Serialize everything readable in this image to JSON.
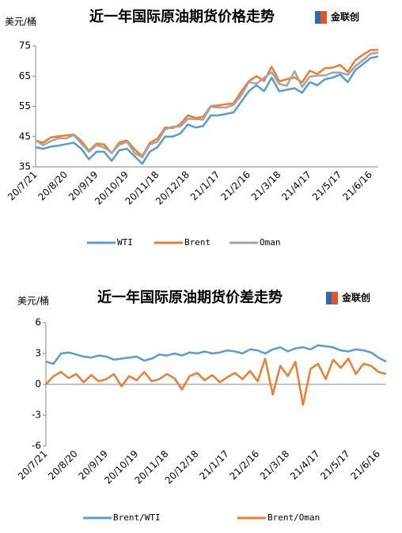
{
  "chart_data": [
    {
      "type": "line",
      "title": "近一年国际原油期货价格走势",
      "y_label": "美元/桶",
      "logo": "金联创",
      "categories": [
        "20/7/21",
        null,
        null,
        null,
        "20/8/20",
        null,
        null,
        null,
        "20/9/19",
        null,
        null,
        null,
        "20/10/19",
        null,
        null,
        null,
        "20/11/18",
        null,
        null,
        null,
        "20/12/18",
        null,
        null,
        null,
        "21/1/17",
        null,
        null,
        null,
        "21/2/16",
        null,
        null,
        null,
        "21/3/18",
        null,
        null,
        null,
        "21/4/17",
        null,
        null,
        null,
        "21/5/17",
        null,
        null,
        null,
        "21/6/16",
        null
      ],
      "series": [
        {
          "name": "WTI",
          "color": "#5b9bd5",
          "values": [
            41.5,
            41,
            41.7,
            42,
            42.5,
            43,
            41,
            37.5,
            40,
            40,
            37,
            40.5,
            41,
            38.5,
            36,
            40,
            41.5,
            45,
            45,
            46,
            49,
            48,
            48.5,
            52,
            52,
            52.5,
            53,
            56.5,
            60,
            62,
            60,
            64.5,
            60,
            60.5,
            61,
            59.5,
            63,
            62,
            64,
            64.5,
            65.5,
            63,
            67,
            69,
            71,
            71.5
          ]
        },
        {
          "name": "Brent",
          "color": "#ed7d31",
          "values": [
            43.7,
            43.0,
            44.7,
            45.1,
            45.4,
            45.7,
            43.6,
            40.3,
            42.7,
            42.4,
            39.5,
            43.1,
            43.7,
            40.8,
            38.5,
            42.9,
            44.3,
            48.0,
            47.8,
            49.1,
            52.0,
            51.2,
            51.5,
            55.1,
            55.3,
            55.7,
            56.0,
            59.9,
            63.3,
            65.0,
            63.4,
            68.1,
            63.2,
            64.0,
            64.6,
            62.9,
            66.8,
            65.7,
            67.6,
            67.8,
            68.7,
            66.4,
            70.3,
            72.1,
            73.6,
            73.7
          ]
        },
        {
          "name": "Oman",
          "color": "#a5a5a5",
          "values": [
            43.7,
            42.2,
            43.5,
            44.5,
            44.4,
            45.5,
            42.7,
            40.0,
            42.2,
            41.4,
            39.7,
            42.3,
            43.3,
            39.6,
            38.2,
            42.4,
            43.3,
            47.4,
            48.3,
            48.3,
            50.9,
            50.8,
            50.6,
            54.9,
            54.6,
            54.6,
            55.5,
            58.6,
            63.0,
            62.5,
            64.4,
            66.3,
            62.4,
            61.8,
            66.6,
            61.4,
            64.8,
            65.2,
            65.2,
            66.2,
            66.2,
            65.4,
            68.3,
            70.3,
            72.4,
            72.7
          ]
        }
      ],
      "ylim": [
        35,
        75
      ],
      "yticks": [
        35,
        45,
        55,
        65,
        75
      ],
      "grid": false,
      "legend": "bottom"
    },
    {
      "type": "line",
      "title": "近一年国际原油期货价差走势",
      "y_label": "美元/桶",
      "logo": "金联创",
      "categories": [
        "20/7/21",
        null,
        null,
        null,
        "20/8/20",
        null,
        null,
        null,
        "20/9/19",
        null,
        null,
        null,
        "20/10/19",
        null,
        null,
        null,
        "20/11/18",
        null,
        null,
        null,
        "20/12/18",
        null,
        null,
        null,
        "21/1/17",
        null,
        null,
        null,
        "21/2/16",
        null,
        null,
        null,
        "21/3/18",
        null,
        null,
        null,
        "21/4/17",
        null,
        null,
        null,
        "21/5/17",
        null,
        null,
        null,
        "21/6/16",
        null
      ],
      "series": [
        {
          "name": "Brent/WTI",
          "color": "#5b9bd5",
          "values": [
            2.2,
            2.0,
            3.0,
            3.1,
            2.9,
            2.7,
            2.6,
            2.8,
            2.7,
            2.4,
            2.5,
            2.6,
            2.7,
            2.3,
            2.5,
            2.9,
            2.8,
            3.0,
            2.8,
            3.1,
            3.0,
            3.2,
            3.0,
            3.1,
            3.3,
            3.2,
            3.0,
            3.4,
            3.3,
            3.0,
            3.4,
            3.6,
            3.2,
            3.5,
            3.6,
            3.4,
            3.8,
            3.7,
            3.6,
            3.3,
            3.2,
            3.4,
            3.3,
            3.1,
            2.6,
            2.2
          ]
        },
        {
          "name": "Brent/Oman",
          "color": "#ed7d31",
          "values": [
            0.0,
            0.8,
            1.2,
            0.6,
            1.0,
            0.2,
            0.9,
            0.3,
            0.5,
            1.0,
            -0.2,
            0.8,
            0.4,
            1.2,
            0.3,
            0.5,
            1.0,
            0.6,
            -0.5,
            0.8,
            1.1,
            0.4,
            0.9,
            0.2,
            0.7,
            1.1,
            0.5,
            1.3,
            0.3,
            2.5,
            -1.0,
            1.8,
            0.8,
            2.2,
            -2.0,
            1.5,
            2.0,
            0.5,
            2.4,
            1.6,
            2.5,
            1.0,
            2.0,
            1.8,
            1.2,
            1.0
          ]
        }
      ],
      "ylim": [
        -6,
        6
      ],
      "yticks": [
        -6,
        -3,
        0,
        3,
        6
      ],
      "grid": false,
      "legend": "bottom"
    }
  ]
}
